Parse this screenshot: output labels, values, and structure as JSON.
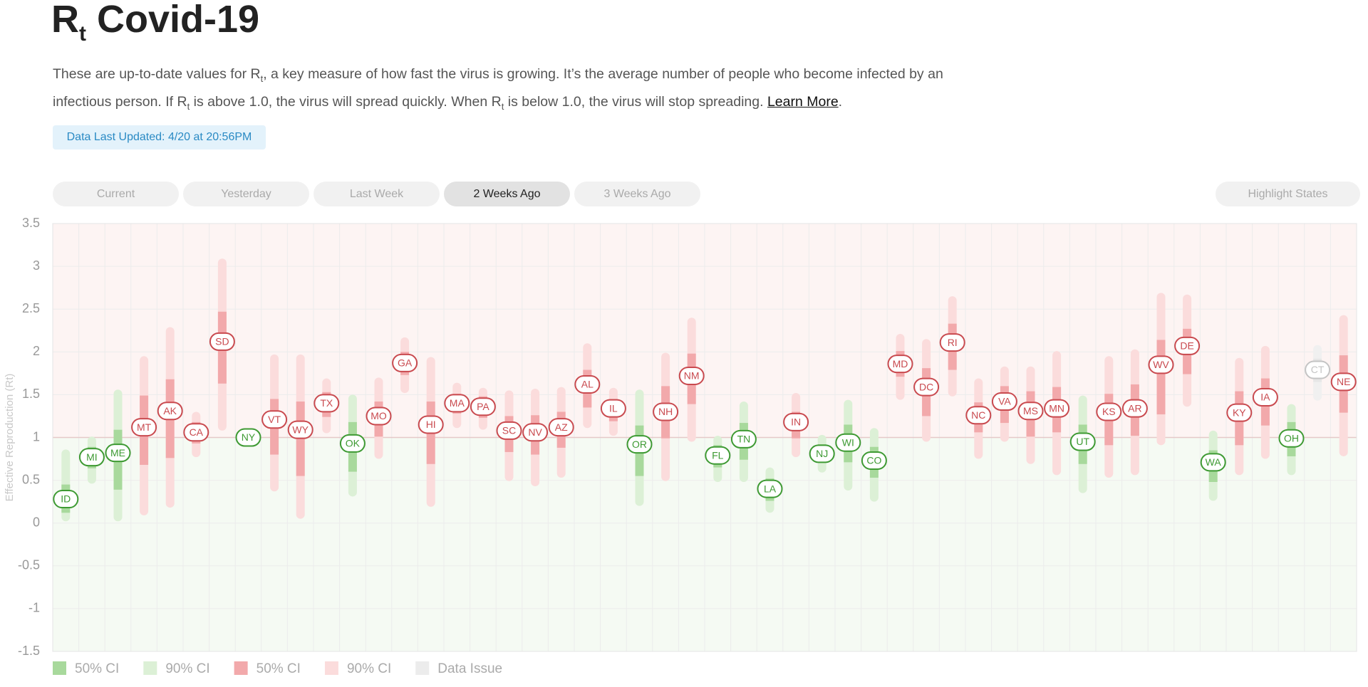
{
  "title": [
    {
      "text": "R"
    },
    {
      "text": "t",
      "style": "sub"
    },
    {
      "text": " Covid-19"
    }
  ],
  "description": [
    {
      "text": "These are up-to-date values for R"
    },
    {
      "text": "t",
      "style": "sub"
    },
    {
      "text": ", a key measure of how fast the virus is growing. It’s the average number of people who become infected by an infectious person. If R"
    },
    {
      "text": "t",
      "style": "sub"
    },
    {
      "text": " is above 1.0, the virus will spread quickly. When R"
    },
    {
      "text": "t",
      "style": "sub"
    },
    {
      "text": " is below 1.0, the virus will stop spreading. "
    },
    {
      "text": "Learn More",
      "style": "link"
    },
    {
      "text": "."
    }
  ],
  "updated": "Data Last Updated: 4/20 at 20:56PM",
  "tabs": [
    "Current",
    "Yesterday",
    "Last Week",
    "2 Weeks Ago",
    "3 Weeks Ago"
  ],
  "active_tab": 3,
  "highlight_button": "Highlight States",
  "chart_data": {
    "type": "ci-range",
    "y_label": "Effective Reproduction (Rt)",
    "ylim": [
      -1.5,
      3.5
    ],
    "yticks": [
      -1.5,
      -1,
      -0.5,
      0,
      0.5,
      1,
      1.5,
      2,
      2.5,
      3,
      3.5
    ],
    "threshold": 1,
    "grid": true,
    "colors": {
      "above": {
        "ci50": "#f2a9ab",
        "ci90": "#fbdcdc",
        "label": "#c94a4f",
        "bg": "#fdf4f3"
      },
      "below": {
        "ci50": "#a8d99c",
        "ci90": "#dcf0d6",
        "label": "#3e9a33",
        "bg": "#f5faf3"
      },
      "issue": {
        "ci50": "#e6e6e6",
        "ci90": "#f0f0f0",
        "label": "#c4c4c4"
      }
    },
    "states": [
      {
        "name": "ID",
        "value": 0.28,
        "ci50": [
          0.12,
          0.45
        ],
        "ci90": [
          0.02,
          0.86
        ]
      },
      {
        "name": "MI",
        "value": 0.77,
        "ci50": [
          0.64,
          0.89
        ],
        "ci90": [
          0.46,
          1.01
        ]
      },
      {
        "name": "ME",
        "value": 0.82,
        "ci50": [
          0.39,
          1.09
        ],
        "ci90": [
          0.02,
          1.56
        ]
      },
      {
        "name": "MT",
        "value": 1.12,
        "ci50": [
          0.68,
          1.49
        ],
        "ci90": [
          0.09,
          1.95
        ]
      },
      {
        "name": "AK",
        "value": 1.31,
        "ci50": [
          0.76,
          1.68
        ],
        "ci90": [
          0.18,
          2.29
        ]
      },
      {
        "name": "CA",
        "value": 1.06,
        "ci50": [
          0.93,
          1.18
        ],
        "ci90": [
          0.77,
          1.3
        ]
      },
      {
        "name": "SD",
        "value": 2.12,
        "ci50": [
          1.63,
          2.47
        ],
        "ci90": [
          1.08,
          3.09
        ]
      },
      {
        "name": "NY",
        "value": 1,
        "ci50": [
          0.99,
          1.01
        ],
        "ci90": [
          0.98,
          1.02
        ]
      },
      {
        "name": "VT",
        "value": 1.21,
        "ci50": [
          0.8,
          1.45
        ],
        "ci90": [
          0.37,
          1.97
        ]
      },
      {
        "name": "WY",
        "value": 1.09,
        "ci50": [
          0.55,
          1.42
        ],
        "ci90": [
          0.05,
          1.97
        ]
      },
      {
        "name": "TX",
        "value": 1.4,
        "ci50": [
          1.24,
          1.53
        ],
        "ci90": [
          1.05,
          1.69
        ]
      },
      {
        "name": "OK",
        "value": 0.93,
        "ci50": [
          0.6,
          1.18
        ],
        "ci90": [
          0.31,
          1.5
        ]
      },
      {
        "name": "MO",
        "value": 1.25,
        "ci50": [
          1.01,
          1.42
        ],
        "ci90": [
          0.75,
          1.7
        ]
      },
      {
        "name": "GA",
        "value": 1.87,
        "ci50": [
          1.73,
          2
        ],
        "ci90": [
          1.52,
          2.17
        ]
      },
      {
        "name": "HI",
        "value": 1.15,
        "ci50": [
          0.69,
          1.42
        ],
        "ci90": [
          0.19,
          1.94
        ]
      },
      {
        "name": "MA",
        "value": 1.4,
        "ci50": [
          1.28,
          1.51
        ],
        "ci90": [
          1.11,
          1.64
        ]
      },
      {
        "name": "PA",
        "value": 1.36,
        "ci50": [
          1.23,
          1.48
        ],
        "ci90": [
          1.09,
          1.58
        ]
      },
      {
        "name": "SC",
        "value": 1.08,
        "ci50": [
          0.83,
          1.25
        ],
        "ci90": [
          0.49,
          1.55
        ]
      },
      {
        "name": "NV",
        "value": 1.06,
        "ci50": [
          0.8,
          1.26
        ],
        "ci90": [
          0.43,
          1.57
        ]
      },
      {
        "name": "AZ",
        "value": 1.12,
        "ci50": [
          0.88,
          1.3
        ],
        "ci90": [
          0.53,
          1.59
        ]
      },
      {
        "name": "AL",
        "value": 1.62,
        "ci50": [
          1.35,
          1.79
        ],
        "ci90": [
          1.11,
          2.1
        ]
      },
      {
        "name": "IL",
        "value": 1.34,
        "ci50": [
          1.19,
          1.45
        ],
        "ci90": [
          1.02,
          1.58
        ]
      },
      {
        "name": "OR",
        "value": 0.92,
        "ci50": [
          0.55,
          1.14
        ],
        "ci90": [
          0.2,
          1.56
        ]
      },
      {
        "name": "NH",
        "value": 1.3,
        "ci50": [
          0.99,
          1.6
        ],
        "ci90": [
          0.49,
          1.99
        ]
      },
      {
        "name": "NM",
        "value": 1.72,
        "ci50": [
          1.39,
          1.98
        ],
        "ci90": [
          0.95,
          2.4
        ]
      },
      {
        "name": "FL",
        "value": 0.79,
        "ci50": [
          0.65,
          0.91
        ],
        "ci90": [
          0.48,
          1.02
        ]
      },
      {
        "name": "TN",
        "value": 0.98,
        "ci50": [
          0.74,
          1.17
        ],
        "ci90": [
          0.48,
          1.42
        ]
      },
      {
        "name": "LA",
        "value": 0.4,
        "ci50": [
          0.26,
          0.52
        ],
        "ci90": [
          0.12,
          0.65
        ]
      },
      {
        "name": "IN",
        "value": 1.18,
        "ci50": [
          0.99,
          1.3
        ],
        "ci90": [
          0.77,
          1.52
        ]
      },
      {
        "name": "NJ",
        "value": 0.81,
        "ci50": [
          0.71,
          0.92
        ],
        "ci90": [
          0.59,
          1.03
        ]
      },
      {
        "name": "WI",
        "value": 0.94,
        "ci50": [
          0.71,
          1.15
        ],
        "ci90": [
          0.38,
          1.44
        ]
      },
      {
        "name": "CO",
        "value": 0.73,
        "ci50": [
          0.53,
          0.89
        ],
        "ci90": [
          0.25,
          1.11
        ]
      },
      {
        "name": "MD",
        "value": 1.86,
        "ci50": [
          1.71,
          2.01
        ],
        "ci90": [
          1.44,
          2.21
        ]
      },
      {
        "name": "DC",
        "value": 1.59,
        "ci50": [
          1.25,
          1.81
        ],
        "ci90": [
          0.95,
          2.15
        ]
      },
      {
        "name": "RI",
        "value": 2.11,
        "ci50": [
          1.79,
          2.33
        ],
        "ci90": [
          1.48,
          2.65
        ]
      },
      {
        "name": "NC",
        "value": 1.26,
        "ci50": [
          1.06,
          1.41
        ],
        "ci90": [
          0.75,
          1.69
        ]
      },
      {
        "name": "VA",
        "value": 1.42,
        "ci50": [
          1.17,
          1.6
        ],
        "ci90": [
          0.95,
          1.83
        ]
      },
      {
        "name": "MS",
        "value": 1.31,
        "ci50": [
          1.01,
          1.54
        ],
        "ci90": [
          0.69,
          1.83
        ]
      },
      {
        "name": "MN",
        "value": 1.34,
        "ci50": [
          1.06,
          1.59
        ],
        "ci90": [
          0.56,
          2.01
        ]
      },
      {
        "name": "UT",
        "value": 0.95,
        "ci50": [
          0.69,
          1.15
        ],
        "ci90": [
          0.35,
          1.49
        ]
      },
      {
        "name": "KS",
        "value": 1.3,
        "ci50": [
          0.91,
          1.51
        ],
        "ci90": [
          0.53,
          1.95
        ]
      },
      {
        "name": "AR",
        "value": 1.34,
        "ci50": [
          1.02,
          1.62
        ],
        "ci90": [
          0.56,
          2.03
        ]
      },
      {
        "name": "WV",
        "value": 1.85,
        "ci50": [
          1.27,
          2.14
        ],
        "ci90": [
          0.91,
          2.69
        ]
      },
      {
        "name": "DE",
        "value": 2.07,
        "ci50": [
          1.74,
          2.27
        ],
        "ci90": [
          1.36,
          2.67
        ]
      },
      {
        "name": "WA",
        "value": 0.71,
        "ci50": [
          0.48,
          0.85
        ],
        "ci90": [
          0.26,
          1.08
        ]
      },
      {
        "name": "KY",
        "value": 1.29,
        "ci50": [
          0.91,
          1.54
        ],
        "ci90": [
          0.56,
          1.93
        ]
      },
      {
        "name": "IA",
        "value": 1.47,
        "ci50": [
          1.14,
          1.69
        ],
        "ci90": [
          0.75,
          2.07
        ]
      },
      {
        "name": "OH",
        "value": 0.99,
        "ci50": [
          0.78,
          1.18
        ],
        "ci90": [
          0.56,
          1.39
        ]
      },
      {
        "name": "CT",
        "value": 1.79,
        "ci50": [
          1.65,
          1.92
        ],
        "ci90": [
          1.43,
          2.08
        ],
        "data_issue": true
      },
      {
        "name": "NE",
        "value": 1.65,
        "ci50": [
          1.29,
          1.96
        ],
        "ci90": [
          0.78,
          2.43
        ]
      }
    ],
    "legend": [
      {
        "label": "50% CI",
        "color": "#a8d99c"
      },
      {
        "label": "90% CI",
        "color": "#dcf0d6"
      },
      {
        "label": "50% CI",
        "color": "#f2a9ab"
      },
      {
        "label": "90% CI",
        "color": "#fbdcdc"
      },
      {
        "label": "Data Issue",
        "color": "#ececec"
      }
    ]
  }
}
